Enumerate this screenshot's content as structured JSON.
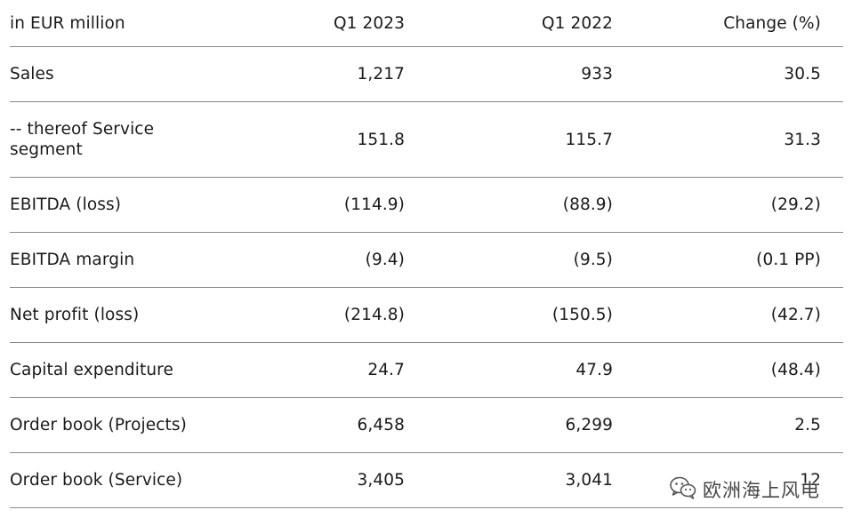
{
  "header": {
    "label": "in EUR million",
    "col1": "Q1 2023",
    "col2": "Q1 2022",
    "col3": "Change (%)"
  },
  "rows": [
    {
      "label": "Sales",
      "q1_2023": "1,217",
      "q1_2022": "933",
      "change": "30.5"
    },
    {
      "label": "-- thereof Service segment",
      "q1_2023": "151.8",
      "q1_2022": "115.7",
      "change": "31.3"
    },
    {
      "label": "EBITDA (loss)",
      "q1_2023": "(114.9)",
      "q1_2022": "(88.9)",
      "change": "(29.2)"
    },
    {
      "label": "EBITDA margin",
      "q1_2023": "(9.4)",
      "q1_2022": "(9.5)",
      "change": "(0.1 PP)"
    },
    {
      "label": "Net profit (loss)",
      "q1_2023": "(214.8)",
      "q1_2022": "(150.5)",
      "change": "(42.7)"
    },
    {
      "label": "Capital expenditure",
      "q1_2023": "24.7",
      "q1_2022": "47.9",
      "change": "(48.4)"
    },
    {
      "label": "Order book (Projects)",
      "q1_2023": "6,458",
      "q1_2022": "6,299",
      "change": "2.5"
    },
    {
      "label": "Order book (Service)",
      "q1_2023": "3,405",
      "q1_2022": "3,041",
      "change": "12"
    }
  ],
  "watermark": {
    "text": "欧洲海上风电",
    "icon": "wechat-icon"
  }
}
